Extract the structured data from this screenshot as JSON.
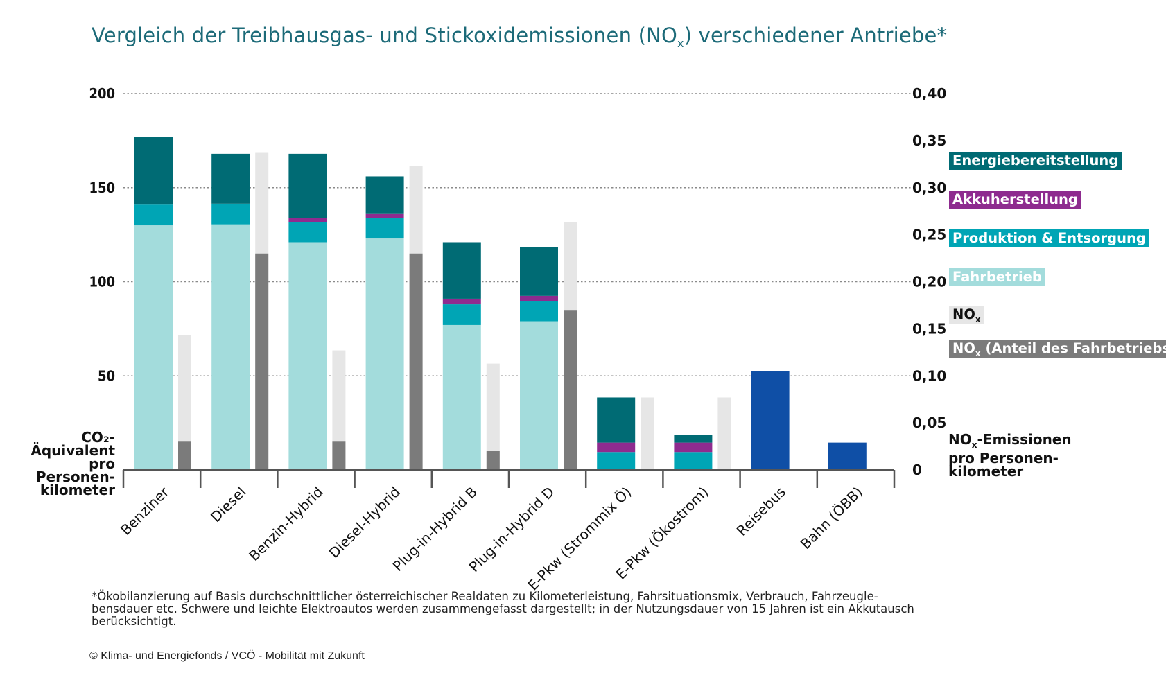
{
  "chart_data": {
    "type": "bar",
    "title": "Vergleich der Treibhausgas- und Stickoxidemissionen (NO",
    "title_sub": "x",
    "title_end": ") verschiedener Antriebe*",
    "categories": [
      "Benziner",
      "Diesel",
      "Benzin-Hybrid",
      "Diesel-Hybrid",
      "Plug-in-Hybrid B",
      "Plug-in-Hybrid D",
      "E-Pkw (Strommix Ö)",
      "E-Pkw (Ökostrom)",
      "Reisebus",
      "Bahn (ÖBB)"
    ],
    "stacked_series": [
      {
        "name": "Fahrbetrieb",
        "color": "#a3dcdc",
        "values": [
          130,
          130.5,
          121,
          123,
          77,
          79,
          0,
          0,
          0,
          0
        ]
      },
      {
        "name": "Produktion & Entsorgung",
        "color": "#00a5b5",
        "values": [
          11,
          11,
          10.5,
          11,
          11,
          10.5,
          9.5,
          9.5,
          0,
          0
        ]
      },
      {
        "name": "Akkuherstellung",
        "color": "#8e2b8f",
        "values": [
          0,
          0,
          2.5,
          2,
          3,
          3,
          5,
          5,
          0,
          0
        ]
      },
      {
        "name": "Energiebereitstellung",
        "color": "#006b74",
        "values": [
          36,
          26.5,
          34,
          20,
          30,
          26,
          24,
          4,
          0,
          0
        ]
      }
    ],
    "bus_rail_series": {
      "name": "",
      "color": "#0f4fa6",
      "values": [
        null,
        null,
        null,
        null,
        null,
        null,
        null,
        null,
        52.5,
        14.5
      ]
    },
    "nox_series": {
      "name": "NO",
      "name_sub": "x",
      "color": "#e6e6e6",
      "values": [
        0.143,
        0.337,
        0.127,
        0.323,
        0.113,
        0.263,
        0.077,
        0.077,
        null,
        null
      ]
    },
    "nox_fahrbetrieb_series": {
      "name": "NO",
      "name_sub": "x",
      "name_end": " (Anteil des Fahrbetriebs)",
      "color": "#7b7b7b",
      "values": [
        0.03,
        0.23,
        0.03,
        0.23,
        0.02,
        0.17,
        null,
        null,
        null,
        null
      ]
    },
    "y_left": {
      "ticks": [
        "200",
        "150",
        "100",
        "50"
      ],
      "tick_values": [
        200,
        150,
        100,
        50
      ],
      "ylim": [
        0,
        200
      ],
      "label_lines": [
        "CO₂-Äquivalent",
        "pro Personen-",
        "kilometer"
      ]
    },
    "y_right": {
      "ticks": [
        "0,40",
        "0,35",
        "0,30",
        "0,25",
        "0,20",
        "0,15",
        "0,10",
        "0,05",
        "0"
      ],
      "tick_values": [
        0.4,
        0.35,
        0.3,
        0.25,
        0.2,
        0.15,
        0.1,
        0.05,
        0
      ],
      "ylim": [
        0,
        0.4
      ],
      "label_prefix": "NO",
      "label_sub": "x",
      "label_suffix": "-Emissionen",
      "label_lines": [
        "pro Personen-",
        "kilometer"
      ]
    },
    "grid": true,
    "legend_position": "right"
  },
  "footnote": "*Ökobilanzierung auf Basis durchschnittlicher österreichischer Realdaten zu Kilometerleistung, Fahrsituationsmix, Verbrauch, Fahrzeugle-bensdauer etc. Schwere und leichte Elektroautos werden zusammengefasst dargestellt; in der Nutzungsdauer von 15 Jahren ist ein Akkutausch berücksichtigt.",
  "credit": "© Klima- und Energiefonds / VCÖ - Mobilität mit Zukunft"
}
